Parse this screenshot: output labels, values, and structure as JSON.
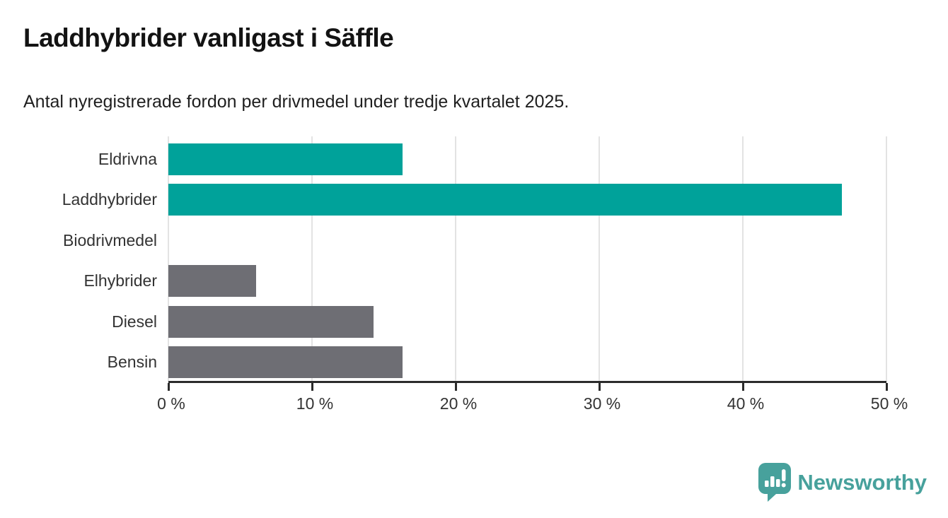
{
  "header": {
    "title": "Laddhybrider vanligast i Säffle",
    "subtitle": "Antal nyregistrerade fordon per drivmedel under tredje kvartalet 2025."
  },
  "chart_data": {
    "type": "bar",
    "orientation": "horizontal",
    "title": "Laddhybrider vanligast i Säffle",
    "subtitle": "Antal nyregistrerade fordon per drivmedel under tredje kvartalet 2025.",
    "categories": [
      "Eldrivna",
      "Laddhybrider",
      "Biodrivmedel",
      "Elhybrider",
      "Diesel",
      "Bensin"
    ],
    "values": [
      16.3,
      46.9,
      0,
      6.1,
      14.3,
      16.3
    ],
    "unit": "%",
    "bar_colors": [
      "#00a29a",
      "#00a29a",
      "#00a29a",
      "#6e6e74",
      "#6e6e74",
      "#6e6e74"
    ],
    "xlim": [
      0,
      50
    ],
    "x_tick_values": [
      0,
      10,
      20,
      30,
      40,
      50
    ],
    "x_tick_labels": [
      "0 %",
      "10 %",
      "20 %",
      "30 %",
      "40 %",
      "50 %"
    ],
    "grid": true,
    "legend": "none",
    "gridline_color": "#e3e3e3",
    "axis_color": "#2b2b2b",
    "axis_text_color": "#333333"
  },
  "branding": {
    "logo_text": "Newsworthy",
    "brand_color": "#47a19c"
  },
  "colors": {
    "teal": "#00a29a",
    "gray": "#6e6e74",
    "title_text": "#131313",
    "subtitle_text": "#1f1f1f"
  }
}
